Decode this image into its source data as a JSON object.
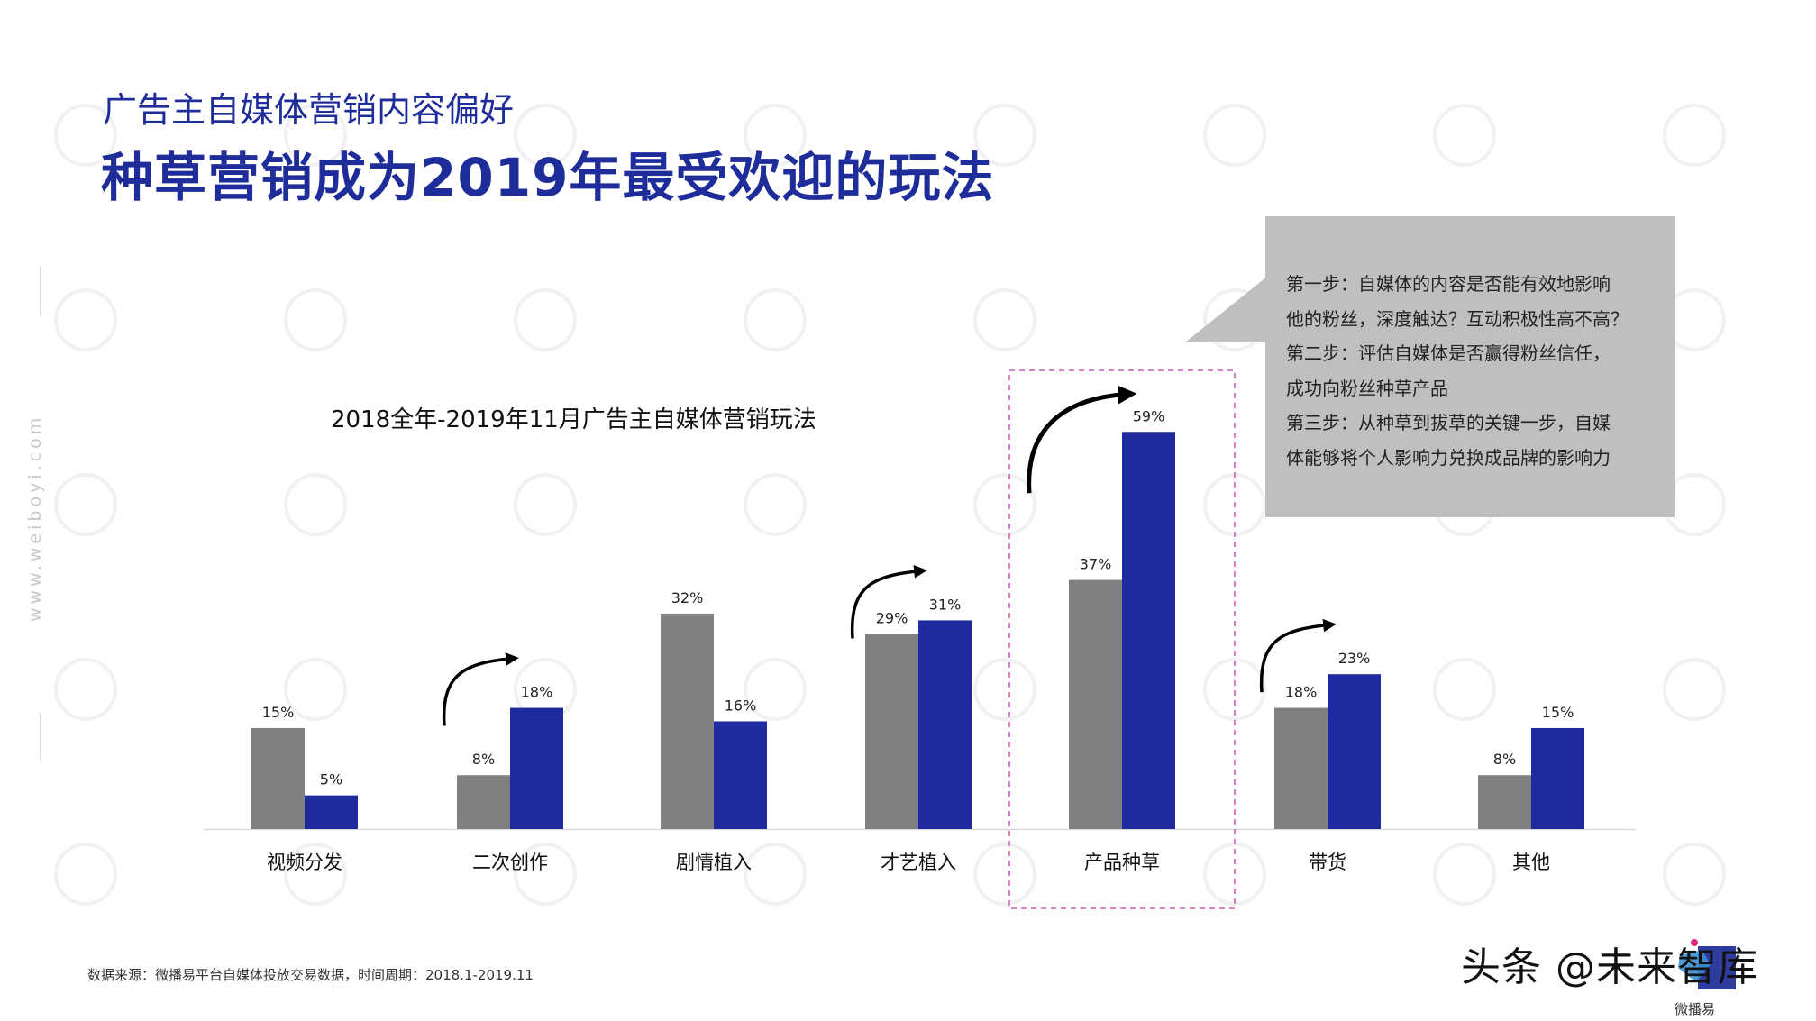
{
  "header": {
    "subtitle": "广告主自媒体营销内容偏好",
    "title": "种草营销成为2019年最受欢迎的玩法"
  },
  "side_url": "www.weiboyi.com",
  "watermark_text": "微播易",
  "callout": {
    "lines": [
      "第一步：自媒体的内容是否能有效地影响",
      "他的粉丝，深度触达？互动积极性高不高？",
      "第二步：评估自媒体是否赢得粉丝信任，",
      "成功向粉丝种草产品",
      "第三步：从种草到拔草的关键一步，自媒",
      "体能够将个人影响力兑换成品牌的影响力"
    ],
    "color": "#bfbfbf"
  },
  "chart_data": {
    "type": "bar",
    "title": "2018全年-2019年11月广告主自媒体营销玩法",
    "categories": [
      "视频分发",
      "二次创作",
      "剧情植入",
      "才艺植入",
      "产品种草",
      "带货",
      "其他"
    ],
    "series": [
      {
        "values": [
          15,
          8,
          32,
          29,
          37,
          18,
          8
        ],
        "color": "#808080"
      },
      {
        "values": [
          5,
          18,
          16,
          31,
          59,
          23,
          15
        ],
        "color": "#1f2a9f"
      }
    ],
    "unit": "%",
    "ylim": [
      0,
      60
    ],
    "grid": false,
    "legend": "none",
    "arrow_categories": [
      "二次创作",
      "才艺植入",
      "产品种草",
      "带货"
    ],
    "highlight_category": "产品种草",
    "highlight_color": "#d66fc4"
  },
  "source": "数据来源：微播易平台自媒体投放交易数据，时间周期：2018.1-2019.11",
  "brand": {
    "text": "头条 @未来智库",
    "logo_caption": "微播易"
  }
}
